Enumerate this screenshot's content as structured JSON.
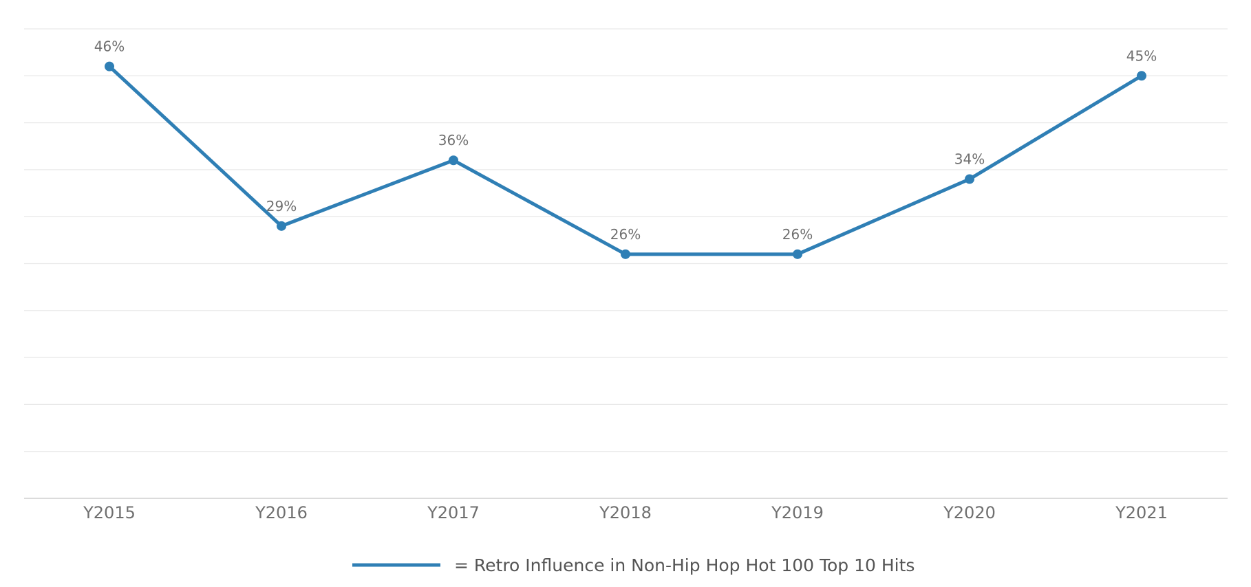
{
  "chart_data": {
    "type": "line",
    "title": "",
    "xlabel": "",
    "ylabel": "",
    "categories": [
      "Y2015",
      "Y2016",
      "Y2017",
      "Y2018",
      "Y2019",
      "Y2020",
      "Y2021"
    ],
    "series": [
      {
        "name": "Retro Influence in Non-Hip Hop Hot 100 Top 10 Hits",
        "values": [
          46,
          29,
          36,
          26,
          26,
          34,
          45
        ],
        "value_suffix": "%",
        "color": "#2f7fb5"
      }
    ],
    "ylim": [
      0,
      50
    ],
    "grid": true,
    "y_axis_labels_visible": false,
    "legend": {
      "position": "bottom-center",
      "text": "= Retro Influence in Non-Hip Hop Hot 100 Top 10 Hits"
    }
  }
}
